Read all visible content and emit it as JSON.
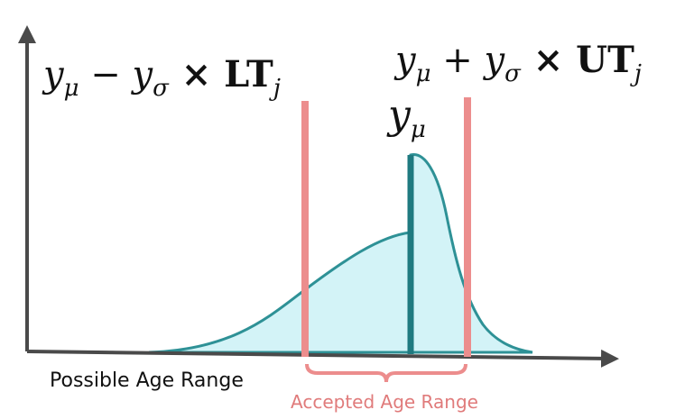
{
  "labels": {
    "lower_threshold": [
      "y",
      "μ",
      " − y",
      "σ",
      " × LT",
      "j"
    ],
    "upper_threshold": [
      "y",
      "μ",
      " + y",
      "σ",
      " × UT",
      "j"
    ],
    "mean": [
      "y",
      "μ"
    ],
    "possible_range": "Possible Age Range",
    "accepted_range": "Accepted Age Range"
  }
}
